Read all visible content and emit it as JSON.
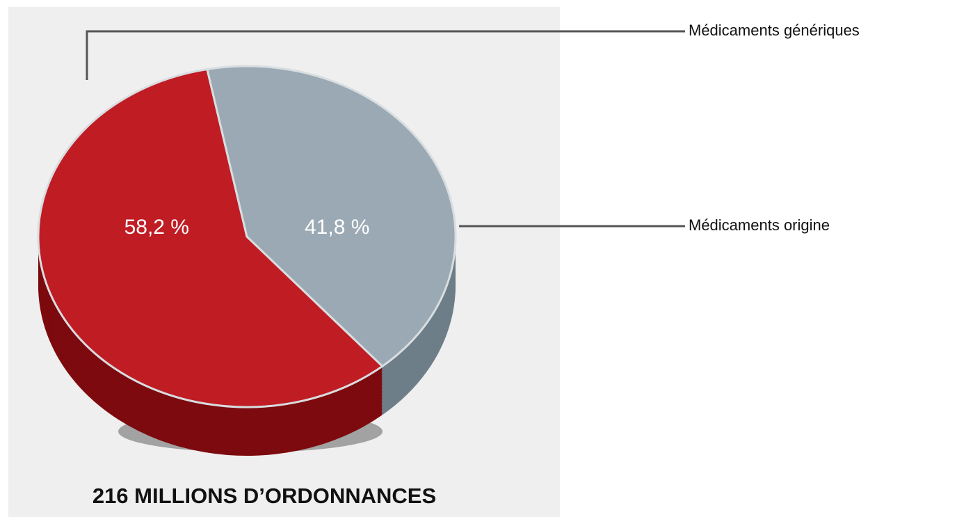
{
  "chart_data": {
    "type": "pie",
    "categories": [
      "Médicaments génériques",
      "Médicaments origine"
    ],
    "values": [
      58.2,
      41.8
    ],
    "value_labels": [
      "58,2 %",
      "41,8 %"
    ],
    "colors": [
      "#c01c24",
      "#9aa9b3"
    ],
    "subtitle": "216 MILLIONS D’ORDONNANCES"
  }
}
